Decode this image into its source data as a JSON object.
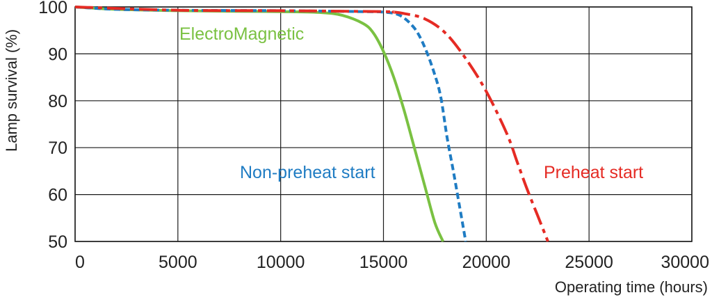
{
  "chart_data": {
    "type": "line",
    "xlabel": "Operating time (hours)",
    "ylabel": "Lamp survival  (%)",
    "xlim": [
      0,
      30000
    ],
    "ylim": [
      50,
      100
    ],
    "x_ticks": [
      "0",
      "5000",
      "10000",
      "15000",
      "20000",
      "25000",
      "30000"
    ],
    "y_ticks": [
      "50",
      "60",
      "70",
      "80",
      "90",
      "100"
    ],
    "grid": true,
    "series": [
      {
        "name": "ElectroMagnetic",
        "color": "#7ac142",
        "style": "solid",
        "x": [
          0,
          2000,
          5000,
          10000,
          12000,
          13000,
          14000,
          14500,
          15000,
          15500,
          16000,
          16500,
          17000,
          17500,
          17900
        ],
        "y": [
          100,
          99.5,
          99.2,
          99.0,
          98.8,
          98.2,
          96.5,
          94.5,
          90.5,
          85,
          78,
          70,
          62,
          54,
          50
        ]
      },
      {
        "name": "Non-preheat start",
        "color": "#1f7cc3",
        "style": "dashed",
        "x": [
          0,
          2000,
          5000,
          10000,
          14000,
          15000,
          15800,
          16500,
          17000,
          17500,
          17800,
          18100,
          18400,
          18700,
          19000
        ],
        "y": [
          100,
          99.5,
          99.3,
          99.2,
          99.0,
          98.9,
          98.2,
          95.5,
          91.5,
          85.5,
          80.5,
          72,
          65,
          57.5,
          50
        ]
      },
      {
        "name": "Preheat start",
        "color": "#e52b24",
        "style": "dashdot",
        "x": [
          0,
          5000,
          10000,
          15000,
          15500,
          16000,
          17000,
          18000,
          19000,
          20000,
          21000,
          21500,
          22000,
          22500,
          23000
        ],
        "y": [
          100,
          99.3,
          99.2,
          99.0,
          98.9,
          98.6,
          97.5,
          94.5,
          89,
          82,
          73,
          67,
          61,
          55.5,
          50
        ]
      }
    ]
  }
}
